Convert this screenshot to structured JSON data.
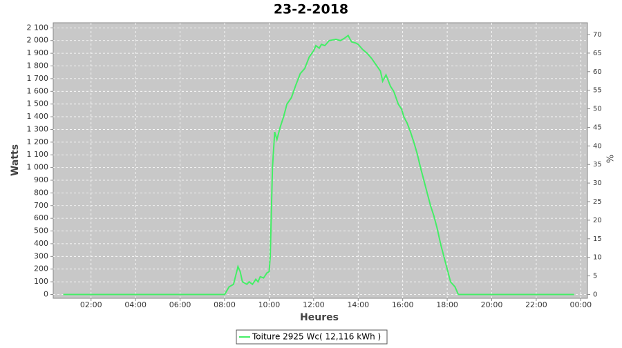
{
  "chart_data": {
    "type": "line",
    "title": "23-2-2018",
    "x_label": "Heures",
    "y_label": "Watts",
    "y2_label": "%",
    "x": [
      0.75,
      2,
      4,
      6,
      8.0,
      8.2,
      8.4,
      8.5,
      8.6,
      8.7,
      8.8,
      9.0,
      9.1,
      9.25,
      9.4,
      9.5,
      9.6,
      9.75,
      9.9,
      10.0,
      10.05,
      10.15,
      10.25,
      10.35,
      10.5,
      10.65,
      10.8,
      11.0,
      11.2,
      11.4,
      11.6,
      11.8,
      12.0,
      12.1,
      12.25,
      12.35,
      12.5,
      12.7,
      13.0,
      13.2,
      13.4,
      13.55,
      13.7,
      13.9,
      14.0,
      14.2,
      14.4,
      14.6,
      14.8,
      15.0,
      15.1,
      15.25,
      15.45,
      15.6,
      15.8,
      15.95,
      16.05,
      16.2,
      16.35,
      16.5,
      16.65,
      16.8,
      16.95,
      17.1,
      17.25,
      17.4,
      17.55,
      17.7,
      17.85,
      18.0,
      18.15,
      18.35,
      18.5,
      20,
      22,
      23.7
    ],
    "series": [
      {
        "name": "Toiture 2925 Wc( 12,116 kWh )",
        "color": "#44ee66",
        "values": [
          0,
          0,
          0,
          0,
          0,
          60,
          80,
          150,
          220,
          180,
          100,
          80,
          100,
          80,
          120,
          100,
          140,
          130,
          170,
          180,
          300,
          1000,
          1280,
          1220,
          1320,
          1400,
          1500,
          1550,
          1650,
          1740,
          1780,
          1870,
          1920,
          1960,
          1940,
          1970,
          1960,
          2000,
          2010,
          2000,
          2020,
          2040,
          1990,
          1980,
          1970,
          1930,
          1900,
          1860,
          1810,
          1760,
          1680,
          1730,
          1640,
          1600,
          1500,
          1460,
          1400,
          1350,
          1280,
          1200,
          1110,
          1000,
          900,
          800,
          700,
          620,
          520,
          400,
          300,
          200,
          100,
          60,
          0,
          0,
          0,
          0
        ]
      }
    ],
    "xlim": [
      0.3,
      24.3
    ],
    "xticks": [
      {
        "value": 2,
        "label": "02:00"
      },
      {
        "value": 4,
        "label": "04:00"
      },
      {
        "value": 6,
        "label": "06:00"
      },
      {
        "value": 8,
        "label": "08:00"
      },
      {
        "value": 10,
        "label": "10:00"
      },
      {
        "value": 12,
        "label": "12:00"
      },
      {
        "value": 14,
        "label": "14:00"
      },
      {
        "value": 16,
        "label": "16:00"
      },
      {
        "value": 18,
        "label": "18:00"
      },
      {
        "value": 20,
        "label": "20:00"
      },
      {
        "value": 22,
        "label": "22:00"
      },
      {
        "value": 24,
        "label": "00:00"
      }
    ],
    "ylim": [
      -30,
      2140
    ],
    "yticks": [
      0,
      100,
      200,
      300,
      400,
      500,
      600,
      700,
      800,
      900,
      {
        "value": 1000,
        "label": "1 000"
      },
      {
        "value": 1100,
        "label": "1 100"
      },
      {
        "value": 1200,
        "label": "1 200"
      },
      {
        "value": 1300,
        "label": "1 300"
      },
      {
        "value": 1400,
        "label": "1 400"
      },
      {
        "value": 1500,
        "label": "1 500"
      },
      {
        "value": 1600,
        "label": "1 600"
      },
      {
        "value": 1700,
        "label": "1 700"
      },
      {
        "value": 1800,
        "label": "1 800"
      },
      {
        "value": 1900,
        "label": "1 900"
      },
      {
        "value": 2000,
        "label": "2 000"
      },
      {
        "value": 2100,
        "label": "2 100"
      }
    ],
    "y2lim": [
      -1.03,
      73.16
    ],
    "y2ticks": [
      0,
      5,
      10,
      15,
      20,
      25,
      30,
      35,
      40,
      45,
      50,
      55,
      60,
      65,
      70
    ],
    "grid": true,
    "legend": "bottom"
  }
}
